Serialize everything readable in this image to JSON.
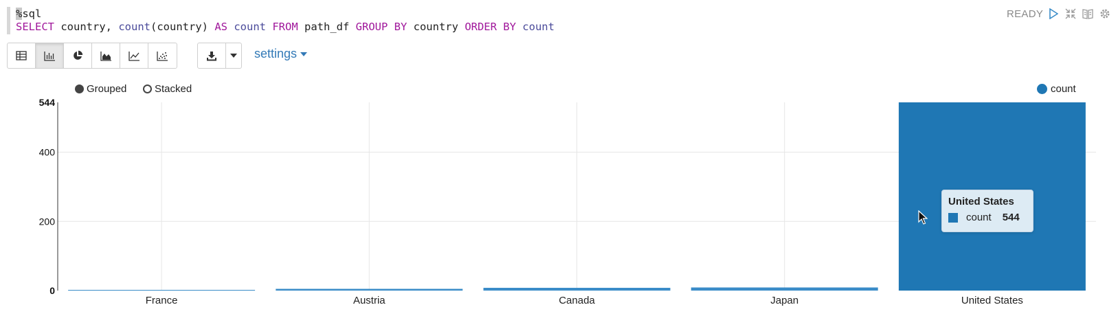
{
  "editor": {
    "line1_cursor": "%",
    "line1_rest": "sql",
    "tokens": {
      "select": "SELECT",
      "country1": " country, ",
      "count_fn": "count",
      "paren": "(country) ",
      "as": "AS",
      "count_alias": " count ",
      "from": "FROM",
      "table": " path_df ",
      "group_by": "GROUP BY",
      "country2": " country ",
      "order_by": "ORDER BY",
      "count_end": " count"
    }
  },
  "status": {
    "text": "READY"
  },
  "toolbar": {
    "settings_label": "settings"
  },
  "options": {
    "grouped_label": "Grouped",
    "stacked_label": "Stacked",
    "selected": "Grouped"
  },
  "colors": {
    "bar_light": "#3a8cc8",
    "bar_active": "#1f77b4",
    "keyword": "#a0179b",
    "link": "#337ab7"
  },
  "chart_data": {
    "type": "bar",
    "categories": [
      "France",
      "Austria",
      "Canada",
      "Japan",
      "United States"
    ],
    "series": [
      {
        "name": "count",
        "values": [
          2,
          5,
          8,
          9,
          544
        ]
      }
    ],
    "ylim": [
      0,
      544
    ],
    "yticks": [
      0,
      200,
      400,
      544
    ],
    "xlabel": "",
    "ylabel": "",
    "grid": true,
    "legend": "top-right",
    "highlighted": "United States"
  },
  "tooltip": {
    "title": "United States",
    "series_label": "count",
    "value": "544"
  }
}
